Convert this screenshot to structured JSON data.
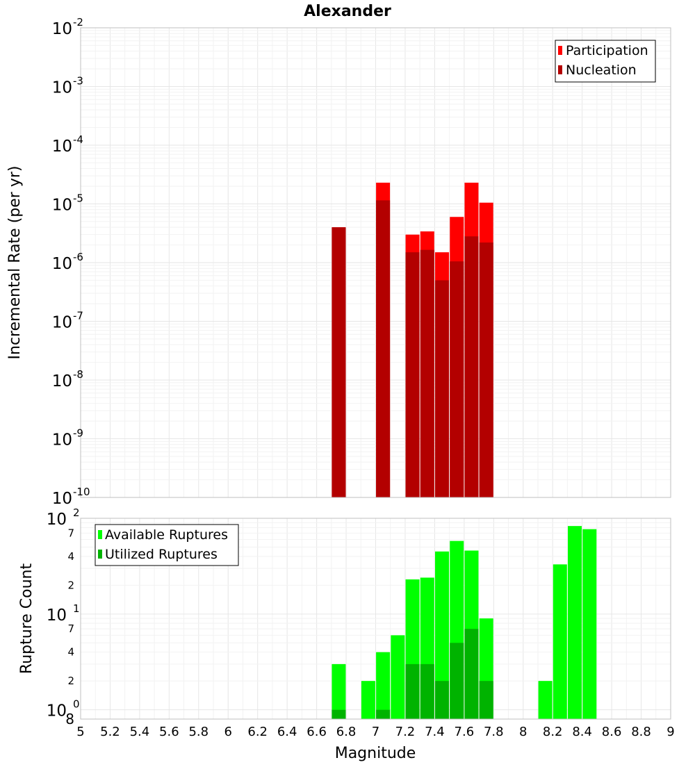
{
  "title": "Alexander",
  "colors": {
    "participation": "#ff0000",
    "nucleation": "#b30000",
    "available": "#00ff00",
    "utilized": "#00b300",
    "grid": "#e6e6e6",
    "minorGrid": "#f2f2f2",
    "frame": "#bfbfbf"
  },
  "xaxis": {
    "label": "Magnitude",
    "range": [
      5,
      9
    ],
    "ticks": [
      "5",
      "5.2",
      "5.4",
      "5.6",
      "5.8",
      "6",
      "6.2",
      "6.4",
      "6.6",
      "6.8",
      "7",
      "7.2",
      "7.4",
      "7.6",
      "7.8",
      "8",
      "8.2",
      "8.4",
      "8.6",
      "8.8",
      "9"
    ]
  },
  "chart_data": [
    {
      "type": "bar",
      "title": "Alexander",
      "xlabel": "",
      "ylabel": "Incremental Rate (per yr)",
      "yscale": "log",
      "ylim": [
        1e-10,
        0.01
      ],
      "xlim": [
        5,
        9
      ],
      "ytick_exponents": [
        "-10",
        "-9",
        "-8",
        "-7",
        "-6",
        "-5",
        "-4",
        "-3",
        "-2"
      ],
      "ytick_base": "10",
      "grid": true,
      "legend": {
        "placement": "top-right",
        "entries": [
          "Participation",
          "Nucleation"
        ]
      },
      "x": [
        6.75,
        7.05,
        7.25,
        7.35,
        7.45,
        7.55,
        7.65,
        7.75
      ],
      "series": [
        {
          "name": "Participation",
          "values": [
            4e-06,
            2.3e-05,
            3e-06,
            3.4e-06,
            1.5e-06,
            6e-06,
            2.3e-05,
            1.05e-05
          ]
        },
        {
          "name": "Nucleation",
          "values": [
            4e-06,
            1.15e-05,
            1.5e-06,
            1.65e-06,
            5e-07,
            1.05e-06,
            2.8e-06,
            2.2e-06
          ]
        }
      ]
    },
    {
      "type": "bar",
      "ylabel": "Rupture Count",
      "xlabel": "Magnitude",
      "yscale": "log",
      "ylim": [
        0.8,
        100
      ],
      "xlim": [
        5,
        9
      ],
      "yticks": [
        {
          "value": 1,
          "base": "10",
          "exp": "0"
        },
        {
          "value": 10,
          "base": "10",
          "exp": "1"
        },
        {
          "value": 100,
          "base": "10",
          "exp": "2"
        }
      ],
      "yminor_ticks": [
        {
          "value": 0.8,
          "label": "8"
        },
        {
          "value": 2,
          "label": "2"
        },
        {
          "value": 4,
          "label": "4"
        },
        {
          "value": 7,
          "label": "7"
        },
        {
          "value": 20,
          "label": "2"
        },
        {
          "value": 40,
          "label": "4"
        },
        {
          "value": 70,
          "label": "7"
        }
      ],
      "grid": true,
      "legend": {
        "placement": "top-left",
        "entries": [
          "Available Ruptures",
          "Utilized Ruptures"
        ]
      },
      "x": [
        6.75,
        6.95,
        7.05,
        7.15,
        7.25,
        7.35,
        7.45,
        7.55,
        7.65,
        7.75,
        8.15,
        8.25,
        8.35,
        8.45
      ],
      "series": [
        {
          "name": "Available Ruptures",
          "values": [
            3,
            2,
            4,
            6,
            23,
            24,
            45,
            58,
            46,
            9,
            2,
            33,
            83,
            77
          ]
        },
        {
          "name": "Utilized Ruptures",
          "values": [
            1,
            0,
            1,
            0,
            3,
            3,
            2,
            5,
            7,
            2,
            0,
            0,
            0,
            0
          ]
        }
      ]
    }
  ]
}
